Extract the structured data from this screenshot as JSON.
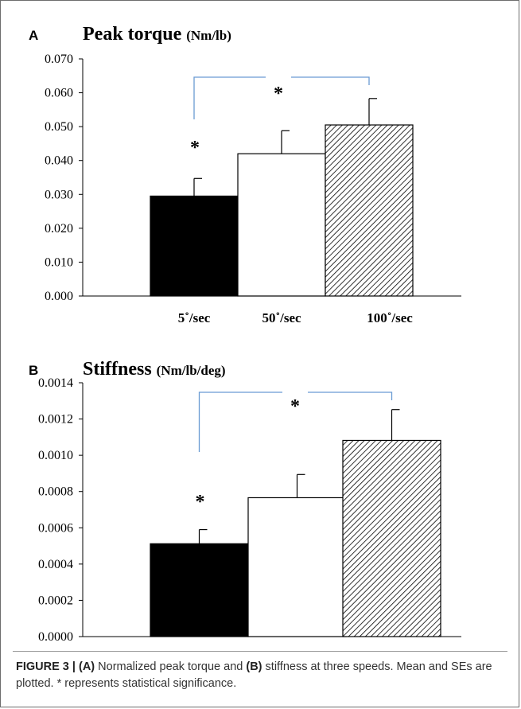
{
  "colors": {
    "bar_fill_1": "#000000",
    "bar_fill_2": "#ffffff",
    "bar_fill_3": "hatched-black",
    "bracket": "#6a9bd3",
    "axis": "#000000"
  },
  "chart_data": [
    {
      "type": "bar",
      "panel_label": "A",
      "title": "Peak torque",
      "title_unit": "(Nm/lb)",
      "categories": [
        "5˚/sec",
        "50˚/sec",
        "100˚/sec"
      ],
      "values": [
        0.0295,
        0.042,
        0.0505
      ],
      "errors": [
        0.0052,
        0.0068,
        0.0078
      ],
      "ylim": [
        0,
        0.07
      ],
      "yticks": [
        "0.000",
        "0.010",
        "0.020",
        "0.030",
        "0.040",
        "0.050",
        "0.060",
        "0.070"
      ],
      "grid": false,
      "annotations": [
        "*",
        "*"
      ]
    },
    {
      "type": "bar",
      "panel_label": "B",
      "title": "Stiffness",
      "title_unit": "(Nm/lb/deg)",
      "categories": [
        "5˚/sec",
        "50˚/sec",
        "100˚/sec"
      ],
      "values": [
        0.000512,
        0.000766,
        0.001082
      ],
      "errors": [
        7.8e-05,
        0.000128,
        0.00017
      ],
      "ylim": [
        0,
        0.0014
      ],
      "yticks": [
        "0.0000",
        "0.0002",
        "0.0004",
        "0.0006",
        "0.0008",
        "0.0010",
        "0.0012",
        "0.0014"
      ],
      "grid": false,
      "annotations": [
        "*",
        "*"
      ]
    }
  ],
  "caption": {
    "figure_label": "FIGURE 3 |",
    "part_a": "(A)",
    "text_1": " Normalized peak torque and ",
    "part_b": "(B)",
    "text_2": " stiffness at three speeds. Mean and SEs are plotted. * represents statistical significance."
  }
}
